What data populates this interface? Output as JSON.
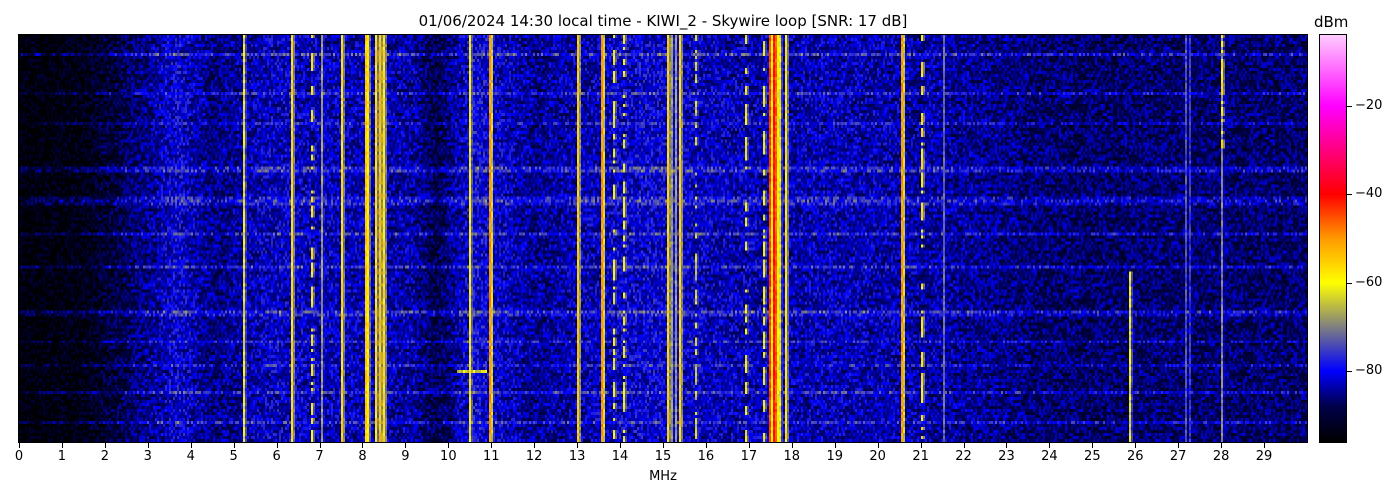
{
  "chart_data": {
    "type": "heatmap",
    "title": "01/06/2024 14:30 local time - KIWI_2 - Skywire loop [SNR: 17 dB]",
    "xlabel": "MHz",
    "ylabel": "",
    "xlim": [
      0,
      30
    ],
    "xticks": [
      0,
      1,
      2,
      3,
      4,
      5,
      6,
      7,
      8,
      9,
      10,
      11,
      12,
      13,
      14,
      15,
      16,
      17,
      18,
      19,
      20,
      21,
      22,
      23,
      24,
      25,
      26,
      27,
      28,
      29
    ],
    "colorbar": {
      "label": "dBm",
      "range": [
        -96,
        -4
      ],
      "ticks": [
        -20,
        -40,
        -60,
        -80
      ],
      "colormap": [
        {
          "dbm": -96,
          "color": "#000000"
        },
        {
          "dbm": -88,
          "color": "#00004a"
        },
        {
          "dbm": -80,
          "color": "#0000ff"
        },
        {
          "dbm": -70,
          "color": "#808080"
        },
        {
          "dbm": -60,
          "color": "#ffff00"
        },
        {
          "dbm": -50,
          "color": "#ff9a00"
        },
        {
          "dbm": -40,
          "color": "#ff0000"
        },
        {
          "dbm": -20,
          "color": "#ff00ff"
        },
        {
          "dbm": -4,
          "color": "#ffccff"
        }
      ]
    },
    "noise_floor_dbm": [
      {
        "mhz": 0,
        "dbm": -96
      },
      {
        "mhz": 1.5,
        "dbm": -94
      },
      {
        "mhz": 2.5,
        "dbm": -88
      },
      {
        "mhz": 3.7,
        "dbm": -81
      },
      {
        "mhz": 4.5,
        "dbm": -86
      },
      {
        "mhz": 6,
        "dbm": -82
      },
      {
        "mhz": 9.2,
        "dbm": -84
      },
      {
        "mhz": 9.7,
        "dbm": -89
      },
      {
        "mhz": 10.6,
        "dbm": -80
      },
      {
        "mhz": 12,
        "dbm": -85
      },
      {
        "mhz": 14.5,
        "dbm": -81
      },
      {
        "mhz": 16.5,
        "dbm": -83
      },
      {
        "mhz": 19,
        "dbm": -83
      },
      {
        "mhz": 21.5,
        "dbm": -84
      },
      {
        "mhz": 24,
        "dbm": -87
      },
      {
        "mhz": 30,
        "dbm": -87
      }
    ],
    "signals": [
      {
        "mhz": 5.2,
        "dbm": -62,
        "pattern": "continuous"
      },
      {
        "mhz": 6.35,
        "dbm": -57,
        "pattern": "continuous"
      },
      {
        "mhz": 6.78,
        "dbm": -59,
        "pattern": "intermittent"
      },
      {
        "mhz": 7.05,
        "dbm": -68,
        "pattern": "continuous"
      },
      {
        "mhz": 7.52,
        "dbm": -57,
        "pattern": "continuous"
      },
      {
        "mhz": 8.05,
        "dbm": -55,
        "pattern": "continuous"
      },
      {
        "mhz": 8.1,
        "dbm": -58,
        "pattern": "continuous"
      },
      {
        "mhz": 8.28,
        "dbm": -57,
        "pattern": "continuous"
      },
      {
        "mhz": 8.38,
        "dbm": -54,
        "pattern": "continuous"
      },
      {
        "mhz": 8.47,
        "dbm": -57,
        "pattern": "continuous"
      },
      {
        "mhz": 10.5,
        "dbm": -60,
        "pattern": "continuous"
      },
      {
        "mhz": 10.97,
        "dbm": -50,
        "pattern": "continuous"
      },
      {
        "mhz": 13.0,
        "dbm": -55,
        "pattern": "continuous"
      },
      {
        "mhz": 13.57,
        "dbm": -50,
        "pattern": "continuous"
      },
      {
        "mhz": 13.85,
        "dbm": -60,
        "pattern": "intermittent"
      },
      {
        "mhz": 14.05,
        "dbm": -60,
        "pattern": "intermittent"
      },
      {
        "mhz": 15.08,
        "dbm": -56,
        "pattern": "continuous"
      },
      {
        "mhz": 15.2,
        "dbm": -68,
        "pattern": "continuous"
      },
      {
        "mhz": 15.28,
        "dbm": -68,
        "pattern": "continuous"
      },
      {
        "mhz": 15.37,
        "dbm": -56,
        "pattern": "continuous"
      },
      {
        "mhz": 15.75,
        "dbm": -64,
        "pattern": "intermittent"
      },
      {
        "mhz": 16.9,
        "dbm": -60,
        "pattern": "intermittent"
      },
      {
        "mhz": 17.35,
        "dbm": -60,
        "pattern": "intermittent"
      },
      {
        "mhz": 17.48,
        "dbm": -44,
        "pattern": "continuous"
      },
      {
        "mhz": 17.55,
        "dbm": -40,
        "pattern": "continuous"
      },
      {
        "mhz": 17.62,
        "dbm": -46,
        "pattern": "continuous"
      },
      {
        "mhz": 17.72,
        "dbm": -62,
        "pattern": "continuous"
      },
      {
        "mhz": 17.82,
        "dbm": -58,
        "pattern": "continuous"
      },
      {
        "mhz": 20.55,
        "dbm": -50,
        "pattern": "continuous"
      },
      {
        "mhz": 21.0,
        "dbm": -58,
        "pattern": "intermittent"
      },
      {
        "mhz": 21.52,
        "dbm": -72,
        "pattern": "continuous"
      },
      {
        "mhz": 25.85,
        "dbm": -62,
        "pattern": "late"
      },
      {
        "mhz": 27.15,
        "dbm": -74,
        "pattern": "continuous"
      },
      {
        "mhz": 27.25,
        "dbm": -76,
        "pattern": "continuous"
      },
      {
        "mhz": 28.0,
        "dbm": -70,
        "pattern": "continuous"
      },
      {
        "mhz": 27.98,
        "dbm": -58,
        "pattern": "early"
      }
    ]
  }
}
